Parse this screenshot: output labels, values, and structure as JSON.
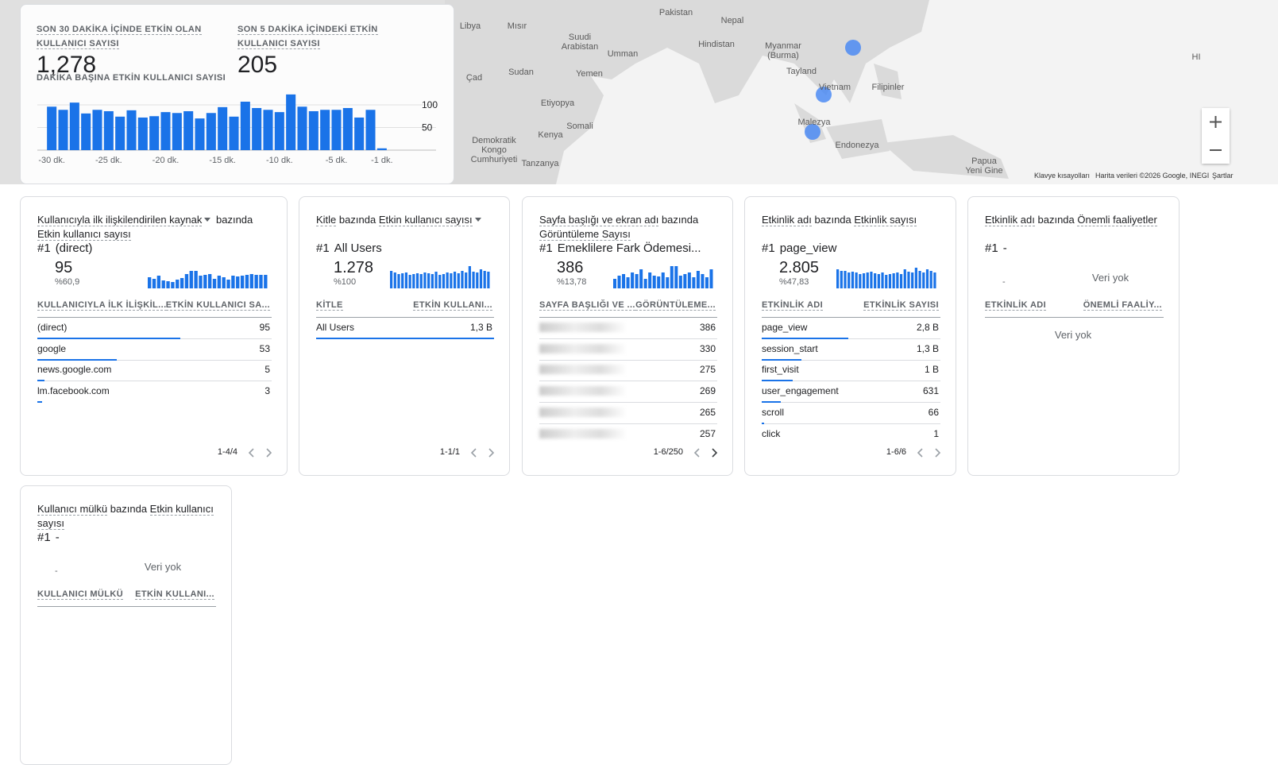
{
  "map": {
    "labels": [
      "Pakistan",
      "Nepal",
      "Libya",
      "Mısır",
      "Suudi Arabistan",
      "Umman",
      "Hindistan",
      "Myanmar (Burma)",
      "Çad",
      "Sudan",
      "Yemen",
      "Tayland",
      "Vietnam",
      "Filipinler",
      "Etiyopya",
      "Somali",
      "Malezya",
      "Kenya",
      "Endonezya",
      "Demokratik Kongo Cumhuriyeti",
      "Tanzanya",
      "Papua Yeni Gine",
      "HI"
    ],
    "footer": [
      "Klavye kısayolları",
      "Harita verileri ©2026 Google, INEGI",
      "Şartlar"
    ]
  },
  "summary": {
    "metrics": [
      {
        "label": "SON 30 DAKİKA İÇİNDE ETKİN OLAN KULLANICI SAYISI",
        "value": "1,278"
      },
      {
        "label": "SON 5 DAKİKA İÇİNDEKİ ETKİN KULLANICI SAYISI",
        "value": "205"
      }
    ]
  },
  "chart_data": {
    "type": "bar",
    "title": "DAKİKA BAŞINA ETKİN KULLANICI SAYISI",
    "categories": [
      "-30 dk.",
      null,
      null,
      null,
      null,
      "-25 dk.",
      null,
      null,
      null,
      null,
      "-20 dk.",
      null,
      null,
      null,
      null,
      "-15 dk.",
      null,
      null,
      null,
      null,
      "-10 dk.",
      null,
      null,
      null,
      null,
      "-5 dk.",
      null,
      null,
      null,
      "-1 dk."
    ],
    "values": [
      96,
      89,
      105,
      81,
      89,
      86,
      74,
      88,
      72,
      75,
      84,
      82,
      86,
      70,
      82,
      95,
      74,
      107,
      93,
      89,
      84,
      123,
      96,
      86,
      89,
      89,
      93,
      72,
      89,
      4
    ],
    "color": "#1a73e8",
    "ylim": [
      0,
      125
    ],
    "yticks": [
      50,
      100
    ],
    "grid": true
  },
  "cards": [
    {
      "title": [
        "Kullanıcıyla ilk ilişkilendirilen kaynak",
        "bazında",
        "Etkin kullanıcı sayısı"
      ],
      "dropdown": 0,
      "top": {
        "rank": "#1",
        "name": "(direct)",
        "value": "95",
        "pct": "%60,9"
      },
      "spark": [
        14,
        12,
        16,
        10,
        9,
        8,
        11,
        13,
        18,
        22,
        22,
        16,
        17,
        18,
        12,
        16,
        14,
        11,
        16,
        15,
        16,
        17,
        18,
        17,
        17,
        17
      ],
      "columns": [
        "KULLANICIYLA İLK İLİŞKİL...",
        "ETKİN KULLANICI SA..."
      ],
      "rows": [
        {
          "label": "(direct)",
          "value": 95
        },
        {
          "label": "google",
          "value": 53
        },
        {
          "label": "news.google.com",
          "value": 5
        },
        {
          "label": "lm.facebook.com",
          "value": 3
        }
      ],
      "pagination": "1-4/4"
    },
    {
      "title": [
        "Kitle",
        "bazında",
        "Etkin kullanıcı sayısı"
      ],
      "dropdown": 2,
      "top": {
        "rank": "#1",
        "name": "All Users",
        "value": "1.278",
        "pct": "%100"
      },
      "spark": [
        22,
        20,
        18,
        19,
        20,
        17,
        18,
        19,
        18,
        20,
        19,
        18,
        21,
        17,
        18,
        20,
        19,
        21,
        19,
        22,
        20,
        28,
        21,
        20,
        24,
        22,
        21
      ],
      "columns": [
        "KİTLE",
        "ETKİN KULLANI..."
      ],
      "rows": [
        {
          "label": "All Users",
          "value": 1300,
          "value_label": "1,3 B"
        }
      ],
      "pagination": "1-1/1"
    },
    {
      "title": [
        "Sayfa başlığı ve ekran adı",
        "bazında",
        "Görüntüleme Sayısı"
      ],
      "top": {
        "rank": "#1",
        "name": "Emeklilere Fark Ödemesi...",
        "value": "386",
        "pct": "%13,78"
      },
      "spark": [
        12,
        16,
        18,
        14,
        20,
        18,
        24,
        12,
        20,
        16,
        15,
        20,
        14,
        28,
        28,
        16,
        18,
        20,
        14,
        22,
        18,
        14,
        24
      ],
      "columns": [
        "SAYFA BAŞLIĞI VE ...",
        "GÖRÜNTÜLEME..."
      ],
      "rows": [
        {
          "label": null,
          "value": 386
        },
        {
          "label": null,
          "value": 330
        },
        {
          "label": null,
          "value": 275
        },
        {
          "label": null,
          "value": 269
        },
        {
          "label": null,
          "value": 265
        },
        {
          "label": null,
          "value": 257
        }
      ],
      "pagination": "1-6/250"
    },
    {
      "title": [
        "Etkinlik adı",
        "bazında",
        "Etkinlik sayısı"
      ],
      "top": {
        "rank": "#1",
        "name": "page_view",
        "value": "2.805",
        "pct": "%47,83"
      },
      "spark": [
        24,
        22,
        22,
        20,
        21,
        20,
        18,
        19,
        20,
        21,
        19,
        18,
        20,
        17,
        18,
        19,
        20,
        18,
        24,
        21,
        20,
        26,
        22,
        20,
        24,
        22,
        20
      ],
      "columns": [
        "ETKİNLİK ADI",
        "ETKİNLİK SAYISI"
      ],
      "rows": [
        {
          "label": "page_view",
          "value": 2800,
          "value_label": "2,8 B"
        },
        {
          "label": "session_start",
          "value": 1300,
          "value_label": "1,3 B"
        },
        {
          "label": "first_visit",
          "value": 1000,
          "value_label": "1 B"
        },
        {
          "label": "user_engagement",
          "value": 631
        },
        {
          "label": "scroll",
          "value": 66
        },
        {
          "label": "click",
          "value": 1
        }
      ],
      "pagination": "1-6/6"
    },
    {
      "title": [
        "Etkinlik adı",
        "bazında",
        "Önemli faaliyetler"
      ],
      "top": {
        "rank": "#1",
        "name": "-",
        "value": "-",
        "message": "Veri yok"
      },
      "columns": [
        "ETKİNLİK ADI",
        "ÖNEMLİ FAALİY..."
      ],
      "empty": "Veri yok"
    },
    {
      "title": [
        "Kullanıcı mülkü",
        "bazında",
        "Etkin kullanıcı sayısı"
      ],
      "top": {
        "rank": "#1",
        "name": "-",
        "value": "-",
        "message": "Veri yok"
      },
      "columns": [
        "KULLANICI MÜLKÜ",
        "ETKİN KULLANI..."
      ]
    }
  ]
}
